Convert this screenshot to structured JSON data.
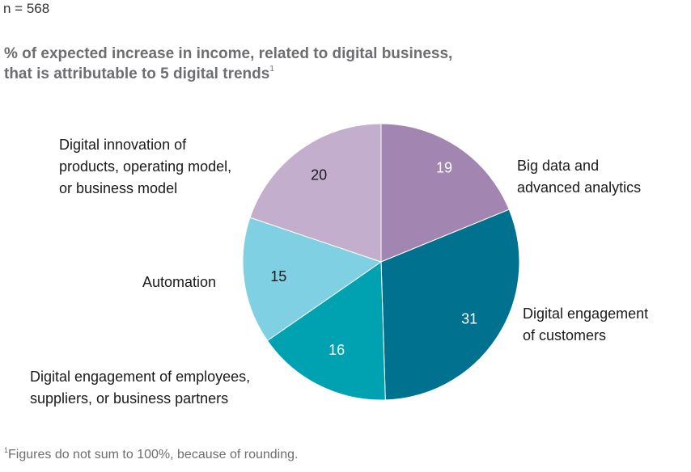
{
  "header": {
    "sample": "n = 568",
    "title_line1": "% of expected increase in income, related to digital business,",
    "title_line2": "that is attributable to 5 digital trends",
    "title_footnote_mark": "1"
  },
  "footnote": {
    "mark": "1",
    "text": "Figures do not sum to 100%, because of rounding."
  },
  "chart_data": {
    "type": "pie",
    "start_angle_deg": 0,
    "direction": "clockwise",
    "slices": [
      {
        "label_lines": [
          "Big data and",
          "advanced analytics"
        ],
        "value": 19,
        "color": "#a385b1",
        "value_text_color": "#ffffff"
      },
      {
        "label_lines": [
          "Digital engagement",
          "of customers"
        ],
        "value": 31,
        "color": "#00718f",
        "value_text_color": "#ffffff"
      },
      {
        "label_lines": [
          "Digital engagement of employees,",
          "suppliers, or business partners"
        ],
        "value": 16,
        "color": "#00a2b1",
        "value_text_color": "#ffffff"
      },
      {
        "label_lines": [
          "Automation"
        ],
        "value": 15,
        "color": "#7fd0e2",
        "value_text_color": "#1a1a1a"
      },
      {
        "label_lines": [
          "Digital innovation of",
          "products, operating model,",
          "or business model"
        ],
        "value": 20,
        "color": "#c3aecd",
        "value_text_color": "#1a1a1a"
      }
    ]
  }
}
